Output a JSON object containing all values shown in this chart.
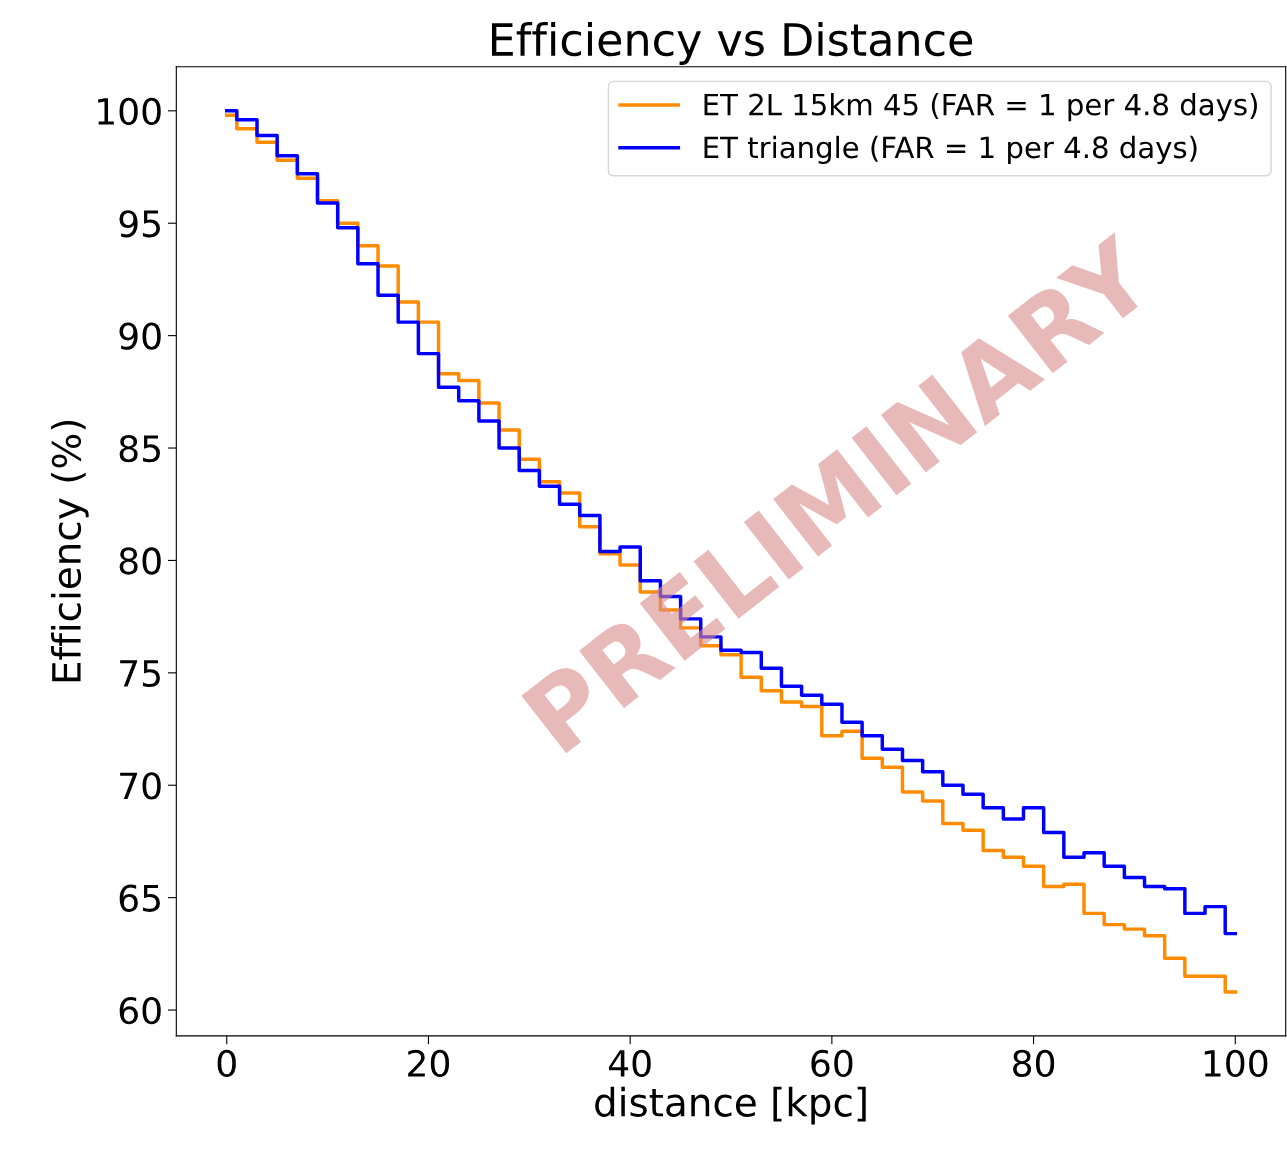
{
  "chart_data": {
    "type": "step",
    "title": "Efficiency vs Distance",
    "xlabel": "distance [kpc]",
    "ylabel": "Efficiency (%)",
    "x": [
      0,
      2,
      4,
      6,
      8,
      10,
      12,
      14,
      16,
      18,
      20,
      22,
      24,
      26,
      28,
      30,
      32,
      34,
      36,
      38,
      40,
      42,
      44,
      46,
      48,
      50,
      52,
      54,
      56,
      58,
      60,
      62,
      64,
      66,
      68,
      70,
      72,
      74,
      76,
      78,
      80,
      82,
      84,
      86,
      88,
      90,
      92,
      94,
      96,
      98,
      100
    ],
    "series": [
      {
        "name": "ET 2L 15km 45 (FAR = 1 per 4.8 days)",
        "color": "#ff8c00",
        "values": [
          99.8,
          99.2,
          98.6,
          97.8,
          97.0,
          96.0,
          95.0,
          94.0,
          93.1,
          91.5,
          90.6,
          88.3,
          88.0,
          87.0,
          85.8,
          84.5,
          83.5,
          83.0,
          81.5,
          80.3,
          79.8,
          78.6,
          77.8,
          77.0,
          76.2,
          75.8,
          74.8,
          74.2,
          73.7,
          73.5,
          72.2,
          72.4,
          71.2,
          70.8,
          69.7,
          69.3,
          68.3,
          68.0,
          67.1,
          66.8,
          66.4,
          65.5,
          65.6,
          64.3,
          63.8,
          63.6,
          63.3,
          62.3,
          61.5,
          61.5,
          60.8
        ]
      },
      {
        "name": "ET triangle (FAR = 1 per 4.8 days)",
        "color": "#0000ff",
        "values": [
          100.0,
          99.6,
          98.9,
          98.0,
          97.2,
          95.9,
          94.8,
          93.2,
          91.8,
          90.6,
          89.2,
          87.7,
          87.1,
          86.2,
          85.0,
          84.0,
          83.3,
          82.5,
          82.0,
          80.4,
          80.6,
          79.1,
          78.4,
          77.4,
          76.6,
          76.0,
          75.9,
          75.2,
          74.4,
          74.0,
          73.6,
          72.8,
          72.2,
          71.6,
          71.1,
          70.6,
          70.0,
          69.6,
          69.0,
          68.5,
          69.0,
          67.9,
          66.8,
          67.0,
          66.4,
          65.9,
          65.5,
          65.4,
          64.3,
          64.6,
          63.4
        ]
      }
    ],
    "xlim": [
      -5,
      105
    ],
    "ylim": [
      58.85,
      101.96
    ],
    "xticks": [
      0,
      20,
      40,
      60,
      80,
      100
    ],
    "yticks": [
      60,
      65,
      70,
      75,
      80,
      85,
      90,
      95,
      100
    ],
    "annotations": [
      "PRELIMINARY"
    ],
    "legend": "top right",
    "grid": false
  }
}
